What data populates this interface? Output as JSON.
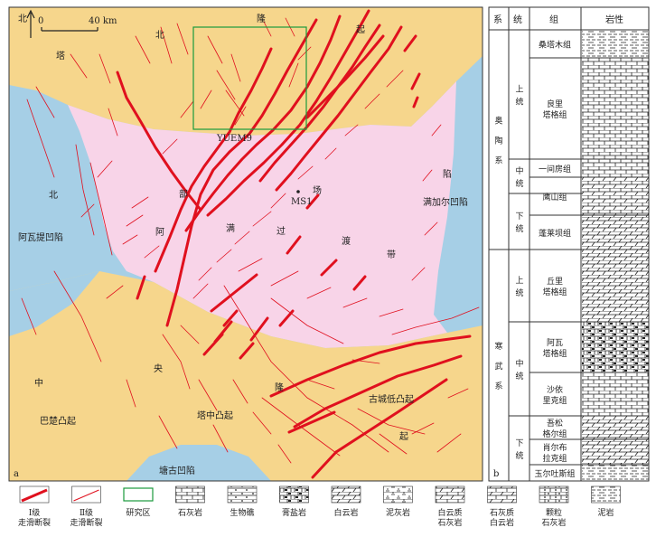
{
  "map": {
    "panel_label": "a",
    "north_label": "北",
    "scale": {
      "zero": "0",
      "end": "40 km"
    },
    "study_box_label": "YUEM9",
    "well_label": "MS1",
    "basin_labels": {
      "north_tarim_1": "塔",
      "north_tarim_2": "北",
      "north_tarim_3": "隆",
      "north_tarim_4": "起",
      "awati_north": "北",
      "awati_name": "阿瓦提凹陷",
      "manjiaer_1": "陷",
      "manjiaer_name": "满加尔凹陷",
      "bachu_zhong": "中",
      "bachu_name": "巴楚凸起",
      "central_yang": "央",
      "tazhong_name": "塔中凸起",
      "central_long": "隆",
      "gucheng_name": "古城低凸起",
      "gucheng_qi": "起",
      "tanggu_name": "塘古凹陷",
      "trans_a": "阿",
      "trans_bu": "部",
      "trans_man": "满",
      "trans_guo": "过",
      "trans_chang": "场",
      "trans_du": "渡",
      "trans_dai": "带"
    },
    "colors": {
      "uplift": "#f6d68c",
      "depression": "#a6cfe6",
      "transition": "#f8d4e8",
      "level1_fault": "#e0101e",
      "level2_fault": "#e0101e",
      "study_box": "#1a9a3c"
    }
  },
  "legend": [
    {
      "name": "level1-fault",
      "label": "Ⅰ级\n走滑断裂"
    },
    {
      "name": "level2-fault",
      "label": "Ⅱ级\n走滑断裂"
    },
    {
      "name": "study-area",
      "label": "研究区"
    },
    {
      "name": "limestone",
      "label": "石灰岩"
    },
    {
      "name": "bioherm",
      "label": "生物礁"
    },
    {
      "name": "gypsum-salt",
      "label": "膏盐岩"
    },
    {
      "name": "dolomite",
      "label": "白云岩"
    },
    {
      "name": "marl",
      "label": "泥灰岩"
    },
    {
      "name": "dolomitic-limestone",
      "label": "白云质\n石灰岩"
    },
    {
      "name": "limy-dolomite",
      "label": "石灰质\n白云岩"
    },
    {
      "name": "grainstone",
      "label": "颗粒\n石灰岩"
    },
    {
      "name": "mudstone",
      "label": "泥岩"
    }
  ],
  "column": {
    "panel_label": "b",
    "headers": {
      "system": "系",
      "series": "统",
      "formation": "组",
      "lithology": "岩性"
    },
    "systems": [
      {
        "name": "奥陶系"
      },
      {
        "name": "寒武系"
      }
    ],
    "series": [
      {
        "name": "上统"
      },
      {
        "name": "中统"
      },
      {
        "name": "下统"
      },
      {
        "name": "上统"
      },
      {
        "name": "中统"
      },
      {
        "name": "下统"
      }
    ],
    "formations": [
      {
        "name": "桑塔木组",
        "litho": "mudstone"
      },
      {
        "name": "良里塔格组",
        "litho": "limestone"
      },
      {
        "name": "一间房组",
        "litho": "limestone"
      },
      {
        "name": "鹰山组",
        "litho": "dolomitic-limestone"
      },
      {
        "name": "蓬莱坝组",
        "litho": "dolomite"
      },
      {
        "name": "丘里塔格组",
        "litho": "dolomite"
      },
      {
        "name": "阿瓦塔格组",
        "litho": "gypsum-salt"
      },
      {
        "name": "沙依里克组",
        "litho": "limestone"
      },
      {
        "name": "吾松格尔组",
        "litho": "dolomite"
      },
      {
        "name": "肖尔布拉克组",
        "litho": "dolomite"
      },
      {
        "name": "玉尔吐斯组",
        "litho": "mudstone"
      }
    ]
  }
}
